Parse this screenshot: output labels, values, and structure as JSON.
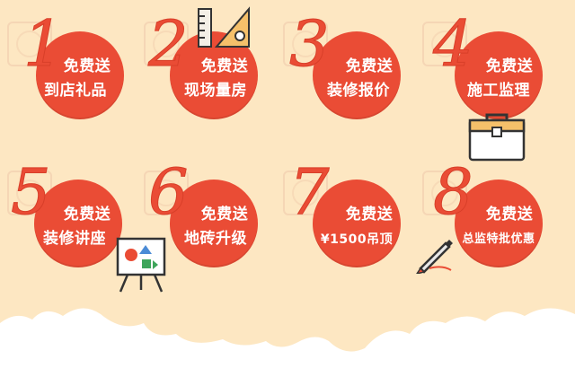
{
  "items": [
    {
      "number": "1",
      "line1": "免费送",
      "line2": "到店礼品"
    },
    {
      "number": "2",
      "line1": "免费送",
      "line2": "现场量房"
    },
    {
      "number": "3",
      "line1": "免费送",
      "line2": "装修报价"
    },
    {
      "number": "4",
      "line1": "免费送",
      "line2": "施工监理"
    },
    {
      "number": "5",
      "line1": "免费送",
      "line2": "装修讲座"
    },
    {
      "number": "6",
      "line1": "免费送",
      "line2": "地砖升级"
    },
    {
      "number": "7",
      "line1": "免费送",
      "line2": "¥1500吊顶"
    },
    {
      "number": "8",
      "line1": "免费送",
      "line2": "总监特批优惠"
    }
  ],
  "colors": {
    "background": "#fde7c2",
    "accent": "#ea4c35",
    "cloud": "#ffffff"
  },
  "icons": [
    "ruler-triangle-icon",
    "toolbox-icon",
    "whiteboard-icon",
    "pen-icon"
  ]
}
